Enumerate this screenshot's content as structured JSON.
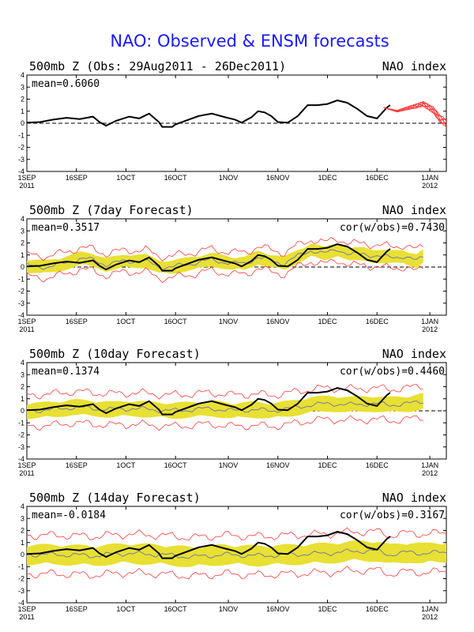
{
  "title": "NAO: Observed & ENSM forecasts",
  "colors": {
    "title": "#1a1aff",
    "observed": "#000000",
    "ensemble_members": "#ff3b3b",
    "spread_band": "#e8e032",
    "ensemble_mean": "#7a7aa8"
  },
  "chart_data": [
    {
      "type": "line",
      "title": "500mb Z (Obs: 29Aug2011 - 26Dec2011)",
      "right_label": "NAO index",
      "stat_left": "mean=0.6060",
      "stat_right": "",
      "ylim": [
        -4,
        4
      ],
      "yticks": [
        "4",
        "3",
        "2",
        "1",
        "0",
        "-1",
        "-2",
        "-3",
        "-4"
      ],
      "xticks": [
        {
          "label": "1SEP",
          "sub": "2011"
        },
        {
          "label": "16SEP",
          "sub": ""
        },
        {
          "label": "1OCT",
          "sub": ""
        },
        {
          "label": "16OCT",
          "sub": ""
        },
        {
          "label": "1NOV",
          "sub": ""
        },
        {
          "label": "16NOV",
          "sub": ""
        },
        {
          "label": "1DEC",
          "sub": ""
        },
        {
          "label": "16DEC",
          "sub": ""
        },
        {
          "label": "1JAN",
          "sub": "2012"
        }
      ],
      "series": [
        {
          "kind": "observed",
          "points": [
            [
              0,
              0.05
            ],
            [
              4,
              0.1
            ],
            [
              8,
              0.3
            ],
            [
              12,
              0.45
            ],
            [
              16,
              0.35
            ],
            [
              20,
              0.55
            ],
            [
              22,
              0.1
            ],
            [
              24,
              -0.2
            ],
            [
              27,
              0.2
            ],
            [
              31,
              0.55
            ],
            [
              34,
              0.4
            ],
            [
              37,
              0.8
            ],
            [
              40,
              0.1
            ],
            [
              41,
              -0.3
            ],
            [
              44,
              -0.3
            ],
            [
              45,
              -0.1
            ],
            [
              48,
              0.2
            ],
            [
              52,
              0.6
            ],
            [
              56,
              0.8
            ],
            [
              60,
              0.5
            ],
            [
              63,
              0.3
            ],
            [
              65,
              0.05
            ],
            [
              68,
              0.5
            ],
            [
              70,
              1.0
            ],
            [
              72,
              0.9
            ],
            [
              74,
              0.6
            ],
            [
              76,
              0.1
            ],
            [
              79,
              0.05
            ],
            [
              82,
              0.6
            ],
            [
              85,
              1.5
            ],
            [
              88,
              1.5
            ],
            [
              91,
              1.6
            ],
            [
              94,
              1.9
            ],
            [
              97,
              1.7
            ],
            [
              100,
              1.2
            ],
            [
              103,
              0.6
            ],
            [
              106,
              0.4
            ],
            [
              109,
              1.3
            ],
            [
              110,
              1.5
            ]
          ]
        },
        {
          "kind": "members",
          "points": [
            [
              108,
              1.3
            ],
            [
              112,
              1.0
            ],
            [
              116,
              1.3
            ],
            [
              120,
              1.6
            ],
            [
              123,
              1.1
            ],
            [
              125,
              0.4
            ],
            [
              127,
              0.0
            ]
          ]
        }
      ]
    },
    {
      "type": "line",
      "title": "500mb Z (7day Forecast)",
      "right_label": "NAO index",
      "stat_left": "mean=0.3517",
      "stat_right": "cor(w/obs)=0.7430",
      "ylim": [
        -4,
        4
      ],
      "yticks": [
        "4",
        "3",
        "2",
        "1",
        "0",
        "-1",
        "-2",
        "-3",
        "-4"
      ],
      "xticks": [
        {
          "label": "1SEP",
          "sub": "2011"
        },
        {
          "label": "16SEP",
          "sub": ""
        },
        {
          "label": "1OCT",
          "sub": ""
        },
        {
          "label": "16OCT",
          "sub": ""
        },
        {
          "label": "1NOV",
          "sub": ""
        },
        {
          "label": "16NOV",
          "sub": ""
        },
        {
          "label": "1DEC",
          "sub": ""
        },
        {
          "label": "16DEC",
          "sub": ""
        },
        {
          "label": "1JAN",
          "sub": "2012"
        }
      ],
      "mean_points": [
        [
          0,
          0.1
        ],
        [
          6,
          0.0
        ],
        [
          10,
          0.2
        ],
        [
          16,
          0.7
        ],
        [
          20,
          0.6
        ],
        [
          24,
          0.2
        ],
        [
          30,
          0.5
        ],
        [
          36,
          0.5
        ],
        [
          40,
          0.0
        ],
        [
          44,
          0.0
        ],
        [
          50,
          0.3
        ],
        [
          56,
          0.6
        ],
        [
          62,
          0.3
        ],
        [
          66,
          0.3
        ],
        [
          70,
          0.8
        ],
        [
          74,
          0.5
        ],
        [
          78,
          0.3
        ],
        [
          82,
          0.9
        ],
        [
          86,
          1.4
        ],
        [
          90,
          1.1
        ],
        [
          94,
          1.5
        ],
        [
          98,
          1.0
        ],
        [
          102,
          1.1
        ],
        [
          106,
          0.9
        ],
        [
          110,
          0.8
        ],
        [
          114,
          0.9
        ],
        [
          118,
          0.5
        ],
        [
          120,
          0.9
        ]
      ],
      "spread": [
        0.6,
        0.9
      ],
      "obs_end": 110
    },
    {
      "type": "line",
      "title": "500mb Z (10day Forecast)",
      "right_label": "NAO index",
      "stat_left": "mean=0.1374",
      "stat_right": "cor(w/obs)=0.4460",
      "ylim": [
        -4,
        4
      ],
      "yticks": [
        "4",
        "3",
        "2",
        "1",
        "0",
        "-1",
        "-2",
        "-3",
        "-4"
      ],
      "xticks": [
        {
          "label": "1SEP",
          "sub": "2011"
        },
        {
          "label": "16SEP",
          "sub": ""
        },
        {
          "label": "1OCT",
          "sub": ""
        },
        {
          "label": "16OCT",
          "sub": ""
        },
        {
          "label": "1NOV",
          "sub": ""
        },
        {
          "label": "16NOV",
          "sub": ""
        },
        {
          "label": "1DEC",
          "sub": ""
        },
        {
          "label": "16DEC",
          "sub": ""
        },
        {
          "label": "1JAN",
          "sub": "2012"
        }
      ],
      "mean_points": [
        [
          0,
          0.0
        ],
        [
          8,
          0.1
        ],
        [
          14,
          0.3
        ],
        [
          20,
          0.2
        ],
        [
          26,
          0.1
        ],
        [
          32,
          0.2
        ],
        [
          38,
          0.1
        ],
        [
          44,
          0.0
        ],
        [
          50,
          0.1
        ],
        [
          56,
          0.2
        ],
        [
          62,
          0.0
        ],
        [
          68,
          0.1
        ],
        [
          74,
          0.0
        ],
        [
          80,
          0.2
        ],
        [
          86,
          0.5
        ],
        [
          92,
          0.6
        ],
        [
          98,
          0.5
        ],
        [
          104,
          0.6
        ],
        [
          110,
          0.5
        ],
        [
          116,
          0.6
        ],
        [
          120,
          0.8
        ]
      ],
      "spread": [
        0.7,
        1.3
      ],
      "obs_end": 110
    },
    {
      "type": "line",
      "title": "500mb Z (14day Forecast)",
      "right_label": "NAO index",
      "stat_left": "mean=-0.0184",
      "stat_right": "cor(w/obs)=0.3167",
      "ylim": [
        -4,
        4
      ],
      "yticks": [
        "4",
        "3",
        "2",
        "1",
        "0",
        "-1",
        "-2",
        "-3",
        "-4"
      ],
      "xticks": [
        {
          "label": "1SEP",
          "sub": "2011"
        },
        {
          "label": "16SEP",
          "sub": ""
        },
        {
          "label": "1OCT",
          "sub": ""
        },
        {
          "label": "16OCT",
          "sub": ""
        },
        {
          "label": "1NOV",
          "sub": ""
        },
        {
          "label": "16NOV",
          "sub": ""
        },
        {
          "label": "1DEC",
          "sub": ""
        },
        {
          "label": "16DEC",
          "sub": ""
        },
        {
          "label": "1JAN",
          "sub": "2012"
        }
      ],
      "mean_points": [
        [
          0,
          0.0
        ],
        [
          10,
          0.0
        ],
        [
          20,
          -0.1
        ],
        [
          30,
          0.1
        ],
        [
          40,
          0.0
        ],
        [
          50,
          -0.2
        ],
        [
          60,
          0.0
        ],
        [
          70,
          -0.1
        ],
        [
          80,
          0.0
        ],
        [
          90,
          0.1
        ],
        [
          100,
          0.3
        ],
        [
          106,
          0.3
        ],
        [
          110,
          0.0
        ],
        [
          116,
          0.2
        ],
        [
          120,
          0.1
        ],
        [
          127,
          0.2
        ]
      ],
      "spread": [
        0.9,
        1.6
      ],
      "obs_end": 110
    }
  ]
}
